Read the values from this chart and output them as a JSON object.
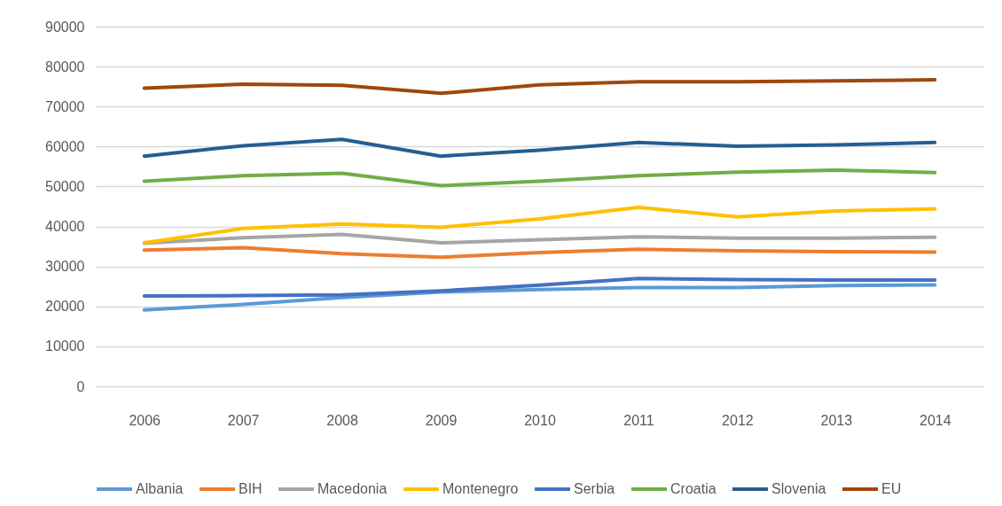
{
  "chart_data": {
    "type": "line",
    "categories": [
      "2006",
      "2007",
      "2008",
      "2009",
      "2010",
      "2011",
      "2012",
      "2013",
      "2014"
    ],
    "series": [
      {
        "name": "Albania",
        "color": "#5b9bd5",
        "values": [
          19100,
          20500,
          22200,
          23600,
          24200,
          24700,
          24700,
          25200,
          25400
        ]
      },
      {
        "name": "BIH",
        "color": "#ed7d31",
        "values": [
          34100,
          34700,
          33200,
          32300,
          33500,
          34300,
          33900,
          33700,
          33600
        ]
      },
      {
        "name": "Macedonia",
        "color": "#a5a5a5",
        "values": [
          35800,
          37200,
          38000,
          35900,
          36700,
          37400,
          37100,
          37100,
          37300
        ]
      },
      {
        "name": "Montenegro",
        "color": "#ffc000",
        "values": [
          35900,
          39500,
          40600,
          39800,
          41900,
          44800,
          42400,
          43900,
          44400
        ]
      },
      {
        "name": "Serbia",
        "color": "#4472c4",
        "values": [
          22600,
          22700,
          22900,
          23900,
          25300,
          27000,
          26700,
          26600,
          26600
        ]
      },
      {
        "name": "Croatia",
        "color": "#70ad47",
        "values": [
          51300,
          52700,
          53300,
          50200,
          51300,
          52700,
          53600,
          54100,
          53500
        ]
      },
      {
        "name": "Slovenia",
        "color": "#255e91",
        "values": [
          57600,
          60200,
          61800,
          57600,
          59100,
          61000,
          60100,
          60400,
          61000
        ]
      },
      {
        "name": "EU",
        "color": "#9e480e",
        "values": [
          74600,
          75600,
          75300,
          73300,
          75400,
          76200,
          76200,
          76400,
          76700
        ]
      }
    ],
    "ylim": [
      0,
      90000
    ],
    "yticks": [
      0,
      10000,
      20000,
      30000,
      40000,
      50000,
      60000,
      70000,
      80000,
      90000
    ],
    "grid": "y",
    "legend": "bottom"
  }
}
